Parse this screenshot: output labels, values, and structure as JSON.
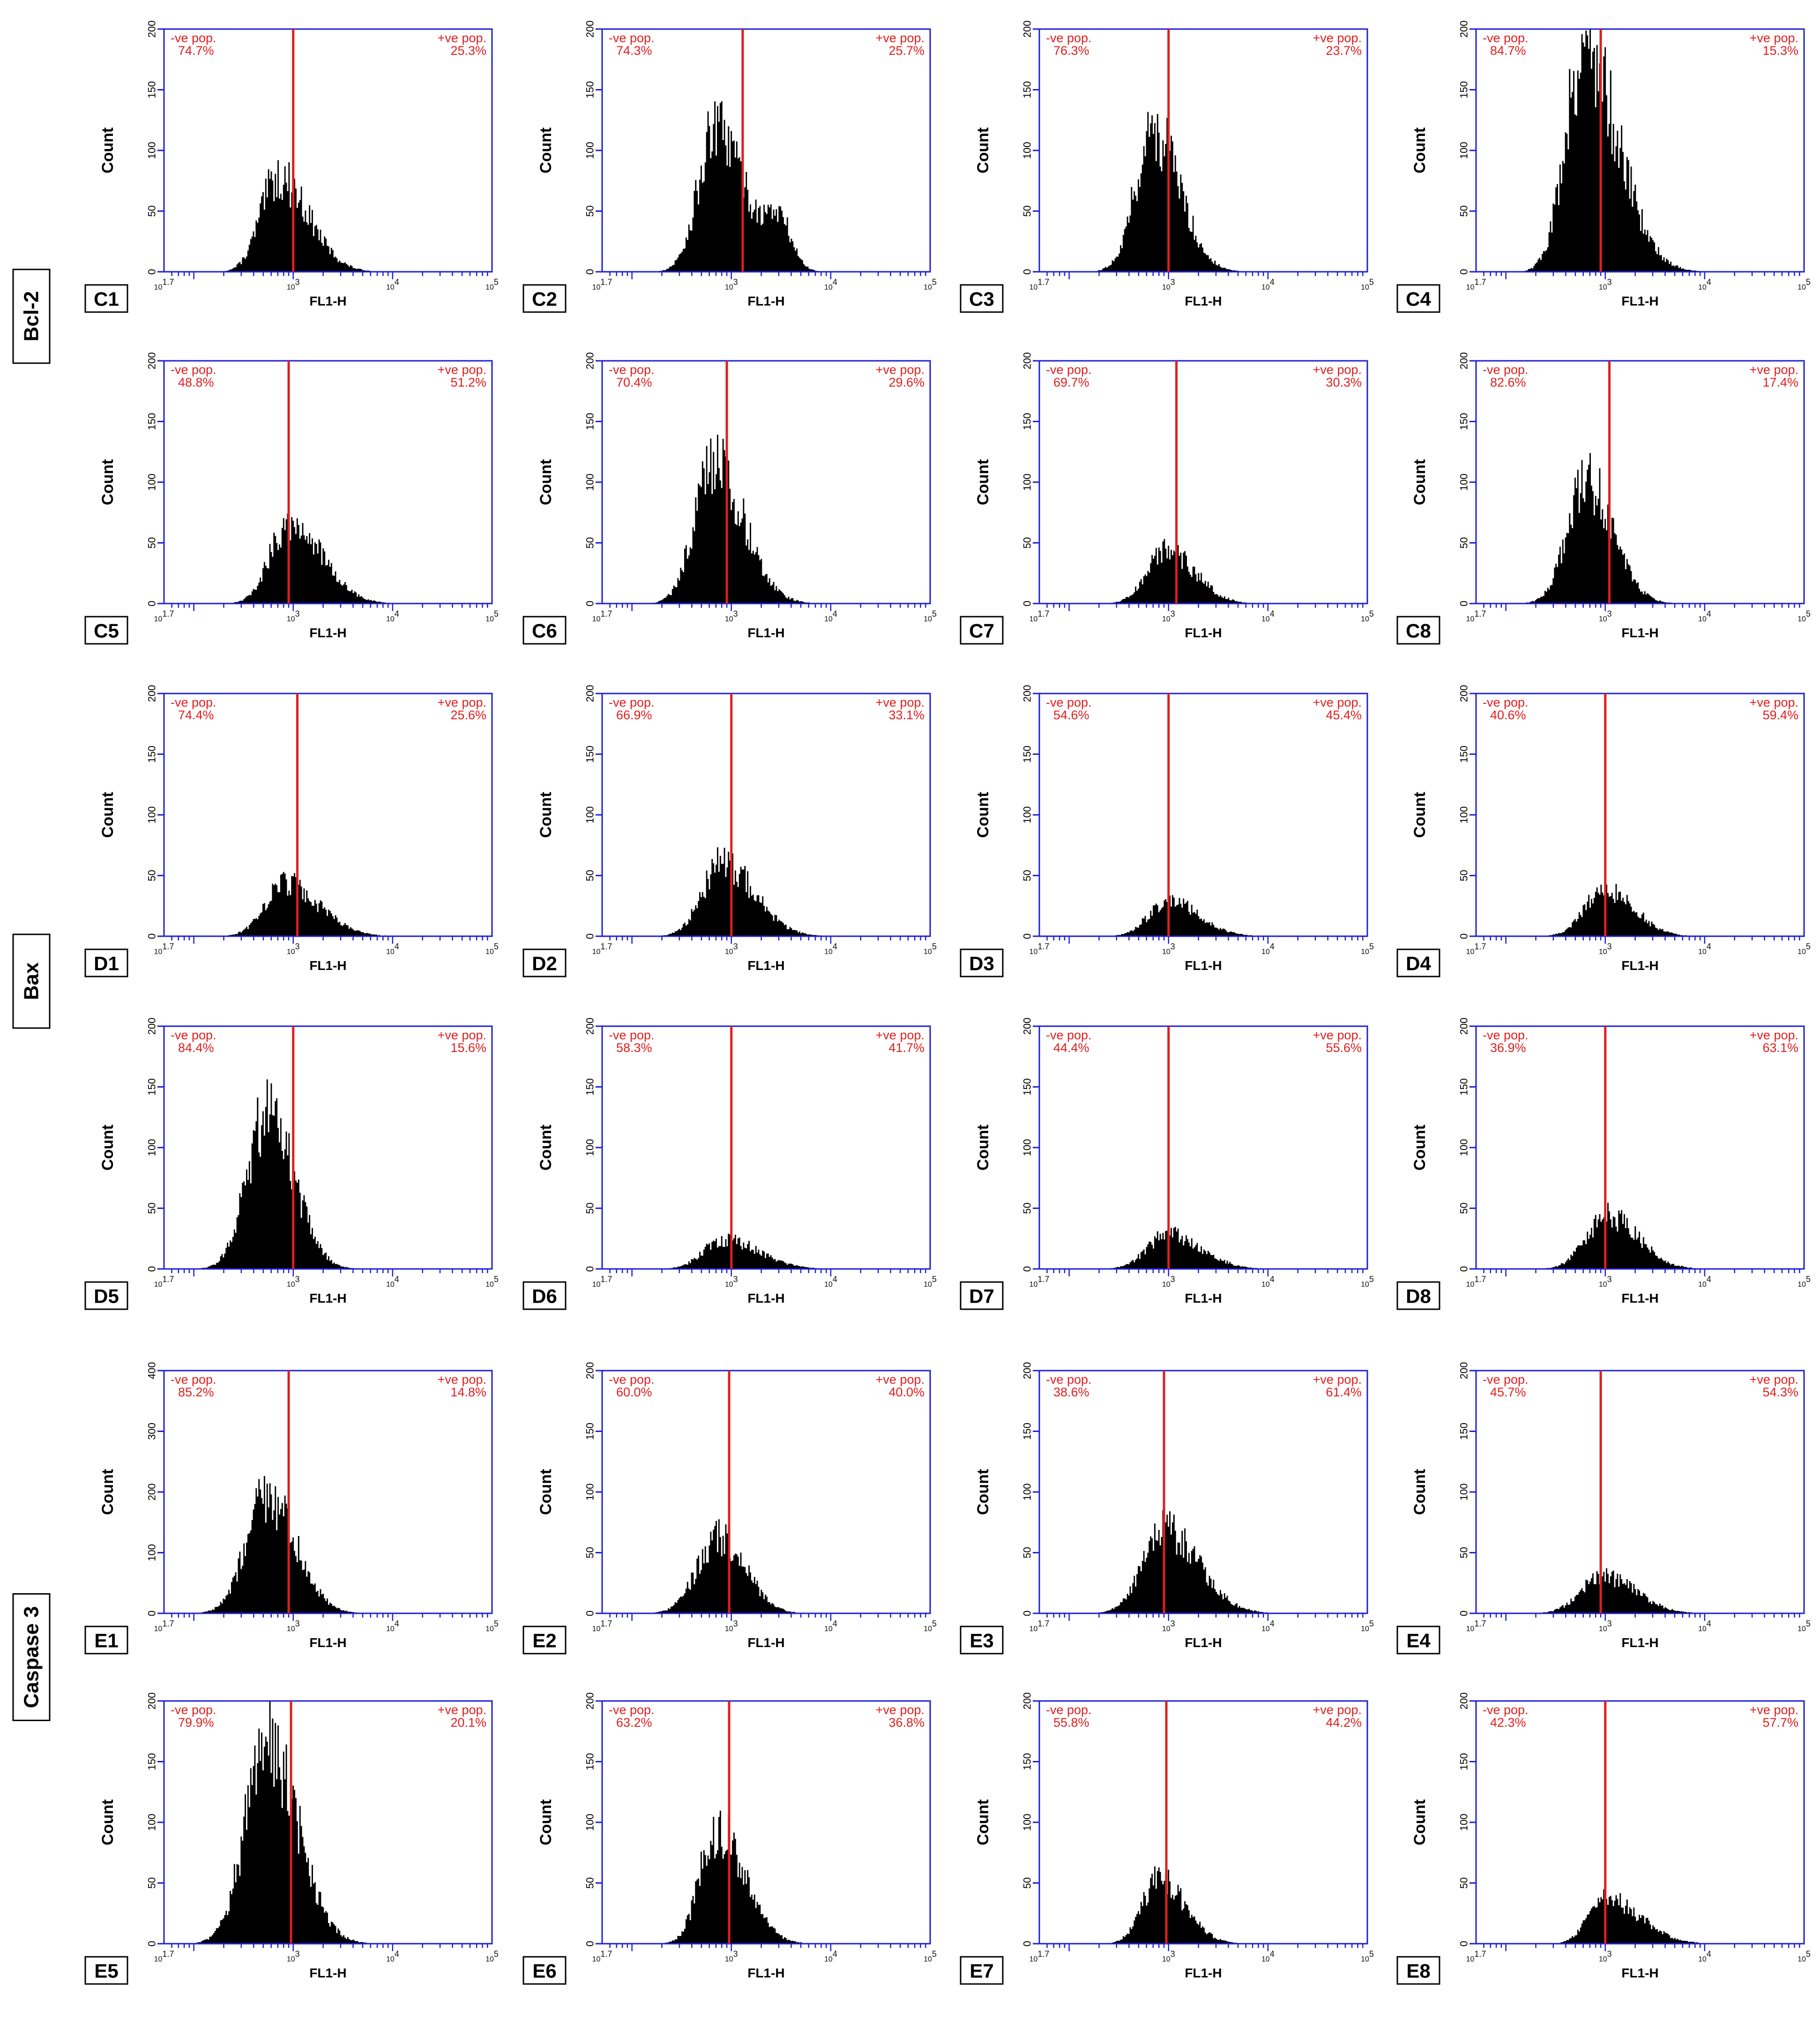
{
  "groups": [
    {
      "label": "Bcl-2",
      "rows": [
        0,
        1
      ]
    },
    {
      "label": "Bax",
      "rows": [
        2,
        3
      ]
    },
    {
      "label": "Caspase 3",
      "rows": [
        4,
        5
      ]
    }
  ],
  "chart_data": [
    {
      "type": "bar",
      "panel": "C1",
      "xlabel": "FL1-H",
      "ylabel": "Count",
      "x_scale": "log",
      "x_ticks": [
        "10^1.7",
        "10^3",
        "10^4",
        "10^5"
      ],
      "ylim": [
        0,
        200
      ],
      "y_ticks": [
        0,
        50,
        100,
        150,
        200
      ],
      "gate_x": 1000,
      "neg_label": "-ve pop.",
      "neg_pct": "74.7%",
      "pos_label": "+ve pop.",
      "pos_pct": "25.3%",
      "peak_x": 700,
      "peak_count": 80
    },
    {
      "type": "bar",
      "panel": "C2",
      "xlabel": "FL1-H",
      "ylabel": "Count",
      "x_scale": "log",
      "x_ticks": [
        "10^1.7",
        "10^3",
        "10^4",
        "10^5"
      ],
      "ylim": [
        0,
        200
      ],
      "y_ticks": [
        0,
        50,
        100,
        150,
        200
      ],
      "gate_x": 1300,
      "neg_label": "-ve pop.",
      "neg_pct": "74.3%",
      "pos_label": "+ve pop.",
      "pos_pct": "25.7%",
      "peak_x": 700,
      "peak_count": 120,
      "second_peak_x": 3000,
      "second_peak_count": 40
    },
    {
      "type": "bar",
      "panel": "C3",
      "xlabel": "FL1-H",
      "ylabel": "Count",
      "x_scale": "log",
      "x_ticks": [
        "10^1.7",
        "10^3",
        "10^4",
        "10^5"
      ],
      "ylim": [
        0,
        200
      ],
      "y_ticks": [
        0,
        50,
        100,
        150,
        200
      ],
      "gate_x": 1000,
      "neg_label": "-ve pop.",
      "neg_pct": "76.3%",
      "pos_label": "+ve pop.",
      "pos_pct": "23.7%",
      "peak_x": 700,
      "peak_count": 120
    },
    {
      "type": "bar",
      "panel": "C4",
      "xlabel": "FL1-H",
      "ylabel": "Count",
      "x_scale": "log",
      "x_ticks": [
        "10^1.7",
        "10^3",
        "10^4",
        "10^5"
      ],
      "ylim": [
        0,
        200
      ],
      "y_ticks": [
        0,
        50,
        100,
        150,
        200
      ],
      "gate_x": 900,
      "neg_label": "-ve pop.",
      "neg_pct": "84.7%",
      "pos_label": "+ve pop.",
      "pos_pct": "15.3%",
      "peak_x": 600,
      "peak_count": 190
    },
    {
      "type": "bar",
      "panel": "C5",
      "xlabel": "FL1-H",
      "ylabel": "Count",
      "x_scale": "log",
      "x_ticks": [
        "10^1.7",
        "10^3",
        "10^4",
        "10^5"
      ],
      "ylim": [
        0,
        200
      ],
      "y_ticks": [
        0,
        50,
        100,
        150,
        200
      ],
      "gate_x": 900,
      "neg_label": "-ve pop.",
      "neg_pct": "48.8%",
      "pos_label": "+ve pop.",
      "pos_pct": "51.2%",
      "peak_x": 900,
      "peak_count": 70
    },
    {
      "type": "bar",
      "panel": "C6",
      "xlabel": "FL1-H",
      "ylabel": "Count",
      "x_scale": "log",
      "x_ticks": [
        "10^1.7",
        "10^3",
        "10^4",
        "10^5"
      ],
      "ylim": [
        0,
        200
      ],
      "y_ticks": [
        0,
        50,
        100,
        150,
        200
      ],
      "gate_x": 900,
      "neg_label": "-ve pop.",
      "neg_pct": "70.4%",
      "pos_label": "+ve pop.",
      "pos_pct": "29.6%",
      "peak_x": 650,
      "peak_count": 120
    },
    {
      "type": "bar",
      "panel": "C7",
      "xlabel": "FL1-H",
      "ylabel": "Count",
      "x_scale": "log",
      "x_ticks": [
        "10^1.7",
        "10^3",
        "10^4",
        "10^5"
      ],
      "ylim": [
        0,
        200
      ],
      "y_ticks": [
        0,
        50,
        100,
        150,
        200
      ],
      "gate_x": 1200,
      "neg_label": "-ve pop.",
      "neg_pct": "69.7%",
      "pos_label": "+ve pop.",
      "pos_pct": "30.3%",
      "peak_x": 950,
      "peak_count": 45
    },
    {
      "type": "bar",
      "panel": "C8",
      "xlabel": "FL1-H",
      "ylabel": "Count",
      "x_scale": "log",
      "x_ticks": [
        "10^1.7",
        "10^3",
        "10^4",
        "10^5"
      ],
      "ylim": [
        0,
        200
      ],
      "y_ticks": [
        0,
        50,
        100,
        150,
        200
      ],
      "gate_x": 1100,
      "neg_label": "-ve pop.",
      "neg_pct": "82.6%",
      "pos_label": "+ve pop.",
      "pos_pct": "17.4%",
      "peak_x": 650,
      "peak_count": 105
    },
    {
      "type": "bar",
      "panel": "D1",
      "xlabel": "FL1-H",
      "ylabel": "Count",
      "x_scale": "log",
      "x_ticks": [
        "10^1.7",
        "10^3",
        "10^4",
        "10^5"
      ],
      "ylim": [
        0,
        200
      ],
      "y_ticks": [
        0,
        50,
        100,
        150,
        200
      ],
      "gate_x": 1100,
      "neg_label": "-ve pop.",
      "neg_pct": "74.4%",
      "pos_label": "+ve pop.",
      "pos_pct": "25.6%",
      "peak_x": 800,
      "peak_count": 45
    },
    {
      "type": "bar",
      "panel": "D2",
      "xlabel": "FL1-H",
      "ylabel": "Count",
      "x_scale": "log",
      "x_ticks": [
        "10^1.7",
        "10^3",
        "10^4",
        "10^5"
      ],
      "ylim": [
        0,
        200
      ],
      "y_ticks": [
        0,
        50,
        100,
        150,
        200
      ],
      "gate_x": 1000,
      "neg_label": "-ve pop.",
      "neg_pct": "66.9%",
      "pos_label": "+ve pop.",
      "pos_pct": "33.1%",
      "peak_x": 800,
      "peak_count": 62
    },
    {
      "type": "bar",
      "panel": "D3",
      "xlabel": "FL1-H",
      "ylabel": "Count",
      "x_scale": "log",
      "x_ticks": [
        "10^1.7",
        "10^3",
        "10^4",
        "10^5"
      ],
      "ylim": [
        0,
        200
      ],
      "y_ticks": [
        0,
        50,
        100,
        150,
        200
      ],
      "gate_x": 1000,
      "neg_label": "-ve pop.",
      "neg_pct": "54.6%",
      "pos_label": "+ve pop.",
      "pos_pct": "45.4%",
      "peak_x": 1000,
      "peak_count": 30
    },
    {
      "type": "bar",
      "panel": "D4",
      "xlabel": "FL1-H",
      "ylabel": "Count",
      "x_scale": "log",
      "x_ticks": [
        "10^1.7",
        "10^3",
        "10^4",
        "10^5"
      ],
      "ylim": [
        0,
        200
      ],
      "y_ticks": [
        0,
        50,
        100,
        150,
        200
      ],
      "gate_x": 1000,
      "neg_label": "-ve pop.",
      "neg_pct": "40.6%",
      "pos_label": "+ve pop.",
      "pos_pct": "59.4%",
      "peak_x": 1000,
      "peak_count": 40
    },
    {
      "type": "bar",
      "panel": "D5",
      "xlabel": "FL1-H",
      "ylabel": "Count",
      "x_scale": "log",
      "x_ticks": [
        "10^1.7",
        "10^3",
        "10^4",
        "10^5"
      ],
      "ylim": [
        0,
        200
      ],
      "y_ticks": [
        0,
        50,
        100,
        150,
        200
      ],
      "gate_x": 1000,
      "neg_label": "-ve pop.",
      "neg_pct": "84.4%",
      "pos_label": "+ve pop.",
      "pos_pct": "15.6%",
      "peak_x": 550,
      "peak_count": 135
    },
    {
      "type": "bar",
      "panel": "D6",
      "xlabel": "FL1-H",
      "ylabel": "Count",
      "x_scale": "log",
      "x_ticks": [
        "10^1.7",
        "10^3",
        "10^4",
        "10^5"
      ],
      "ylim": [
        0,
        200
      ],
      "y_ticks": [
        0,
        50,
        100,
        150,
        200
      ],
      "gate_x": 1000,
      "neg_label": "-ve pop.",
      "neg_pct": "58.3%",
      "pos_label": "+ve pop.",
      "pos_pct": "41.7%",
      "peak_x": 850,
      "peak_count": 25
    },
    {
      "type": "bar",
      "panel": "D7",
      "xlabel": "FL1-H",
      "ylabel": "Count",
      "x_scale": "log",
      "x_ticks": [
        "10^1.7",
        "10^3",
        "10^4",
        "10^5"
      ],
      "ylim": [
        0,
        200
      ],
      "y_ticks": [
        0,
        50,
        100,
        150,
        200
      ],
      "gate_x": 1000,
      "neg_label": "-ve pop.",
      "neg_pct": "44.4%",
      "pos_label": "+ve pop.",
      "pos_pct": "55.6%",
      "peak_x": 1000,
      "peak_count": 30
    },
    {
      "type": "bar",
      "panel": "D8",
      "xlabel": "FL1-H",
      "ylabel": "Count",
      "x_scale": "log",
      "x_ticks": [
        "10^1.7",
        "10^3",
        "10^4",
        "10^5"
      ],
      "ylim": [
        0,
        200
      ],
      "y_ticks": [
        0,
        50,
        100,
        150,
        200
      ],
      "gate_x": 1000,
      "neg_label": "-ve pop.",
      "neg_pct": "36.9%",
      "pos_label": "+ve pop.",
      "pos_pct": "63.1%",
      "peak_x": 1050,
      "peak_count": 45
    },
    {
      "type": "bar",
      "panel": "E1",
      "xlabel": "FL1-H",
      "ylabel": "Count",
      "x_scale": "log",
      "x_ticks": [
        "10^1.7",
        "10^3",
        "10^4",
        "10^5"
      ],
      "ylim": [
        0,
        400
      ],
      "y_ticks": [
        0,
        100,
        200,
        300,
        400
      ],
      "gate_x": 900,
      "neg_label": "-ve pop.",
      "neg_pct": "85.2%",
      "pos_label": "+ve pop.",
      "pos_pct": "14.8%",
      "peak_x": 550,
      "peak_count": 200
    },
    {
      "type": "bar",
      "panel": "E2",
      "xlabel": "FL1-H",
      "ylabel": "Count",
      "x_scale": "log",
      "x_ticks": [
        "10^1.7",
        "10^3",
        "10^4",
        "10^5"
      ],
      "ylim": [
        0,
        200
      ],
      "y_ticks": [
        0,
        50,
        100,
        150,
        200
      ],
      "gate_x": 950,
      "neg_label": "-ve pop.",
      "neg_pct": "60.0%",
      "pos_label": "+ve pop.",
      "pos_pct": "40.0%",
      "peak_x": 750,
      "peak_count": 65
    },
    {
      "type": "bar",
      "panel": "E3",
      "xlabel": "FL1-H",
      "ylabel": "Count",
      "x_scale": "log",
      "x_ticks": [
        "10^1.7",
        "10^3",
        "10^4",
        "10^5"
      ],
      "ylim": [
        0,
        200
      ],
      "y_ticks": [
        0,
        50,
        100,
        150,
        200
      ],
      "gate_x": 900,
      "neg_label": "-ve pop.",
      "neg_pct": "38.6%",
      "pos_label": "+ve pop.",
      "pos_pct": "61.4%",
      "peak_x": 900,
      "peak_count": 70
    },
    {
      "type": "bar",
      "panel": "E4",
      "xlabel": "FL1-H",
      "ylabel": "Count",
      "x_scale": "log",
      "x_ticks": [
        "10^1.7",
        "10^3",
        "10^4",
        "10^5"
      ],
      "ylim": [
        0,
        200
      ],
      "y_ticks": [
        0,
        50,
        100,
        150,
        200
      ],
      "gate_x": 900,
      "neg_label": "-ve pop.",
      "neg_pct": "45.7%",
      "pos_label": "+ve pop.",
      "pos_pct": "54.3%",
      "peak_x": 950,
      "peak_count": 32
    },
    {
      "type": "bar",
      "panel": "E5",
      "xlabel": "FL1-H",
      "ylabel": "Count",
      "x_scale": "log",
      "x_ticks": [
        "10^1.7",
        "10^3",
        "10^4",
        "10^5"
      ],
      "ylim": [
        0,
        200
      ],
      "y_ticks": [
        0,
        50,
        100,
        150,
        200
      ],
      "gate_x": 950,
      "neg_label": "-ve pop.",
      "neg_pct": "79.9%",
      "pos_label": "+ve pop.",
      "pos_pct": "20.1%",
      "peak_x": 550,
      "peak_count": 170
    },
    {
      "type": "bar",
      "panel": "E6",
      "xlabel": "FL1-H",
      "ylabel": "Count",
      "x_scale": "log",
      "x_ticks": [
        "10^1.7",
        "10^3",
        "10^4",
        "10^5"
      ],
      "ylim": [
        0,
        200
      ],
      "y_ticks": [
        0,
        50,
        100,
        150,
        200
      ],
      "gate_x": 950,
      "neg_label": "-ve pop.",
      "neg_pct": "63.2%",
      "pos_label": "+ve pop.",
      "pos_pct": "36.8%",
      "peak_x": 700,
      "peak_count": 95
    },
    {
      "type": "bar",
      "panel": "E7",
      "xlabel": "FL1-H",
      "ylabel": "Count",
      "x_scale": "log",
      "x_ticks": [
        "10^1.7",
        "10^3",
        "10^4",
        "10^5"
      ],
      "ylim": [
        0,
        200
      ],
      "y_ticks": [
        0,
        50,
        100,
        150,
        200
      ],
      "gate_x": 950,
      "neg_label": "-ve pop.",
      "neg_pct": "55.8%",
      "pos_label": "+ve pop.",
      "pos_pct": "44.2%",
      "peak_x": 800,
      "peak_count": 55
    },
    {
      "type": "bar",
      "panel": "E8",
      "xlabel": "FL1-H",
      "ylabel": "Count",
      "x_scale": "log",
      "x_ticks": [
        "10^1.7",
        "10^3",
        "10^4",
        "10^5"
      ],
      "ylim": [
        0,
        200
      ],
      "y_ticks": [
        0,
        50,
        100,
        150,
        200
      ],
      "gate_x": 1000,
      "neg_label": "-ve pop.",
      "neg_pct": "42.3%",
      "pos_label": "+ve pop.",
      "pos_pct": "57.7%",
      "peak_x": 1000,
      "peak_count": 38
    }
  ],
  "colors": {
    "axis": "#1f1fd6",
    "gate": "#e01e1e",
    "label": "#e01e1e",
    "histogram": "#000000"
  }
}
